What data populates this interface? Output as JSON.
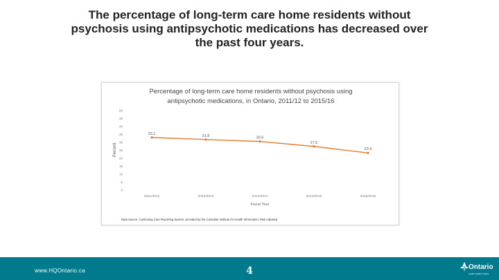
{
  "slide": {
    "title": "The percentage of long-term care home residents without psychosis using antipsychotic medications has decreased over the past four years."
  },
  "footer": {
    "url": "www.HQOntario.ca",
    "page_number": "4",
    "logo_text": "Ontario",
    "logo_sub": "Health Quality Ontario"
  },
  "colors": {
    "line": "#e07b2a",
    "footer_bg": "#007a8c"
  },
  "chart_data": {
    "type": "line",
    "title_line1": "Percentage of long-term care home residents without psychosis using",
    "title_line2": "antipsychotic medications, in Ontario, 2011/12 to 2015/16",
    "xlabel": "Fiscal Year",
    "ylabel": "Percent",
    "ylim": [
      0,
      50
    ],
    "yticks": [
      0,
      5,
      10,
      15,
      20,
      25,
      30,
      35,
      40,
      45,
      50
    ],
    "categories": [
      "2011/2012",
      "2012/2013",
      "2013/2014",
      "2014/2015",
      "2015/2016"
    ],
    "values": [
      33.1,
      31.8,
      30.6,
      27.5,
      23.4
    ],
    "labels": [
      "33.1",
      "31.8",
      "30.6",
      "27.5",
      "23.4"
    ],
    "source": "Data Source: Continuing Care Reporting System, provided by the Canadian Institute for Health Information; Risk Adjusted"
  }
}
